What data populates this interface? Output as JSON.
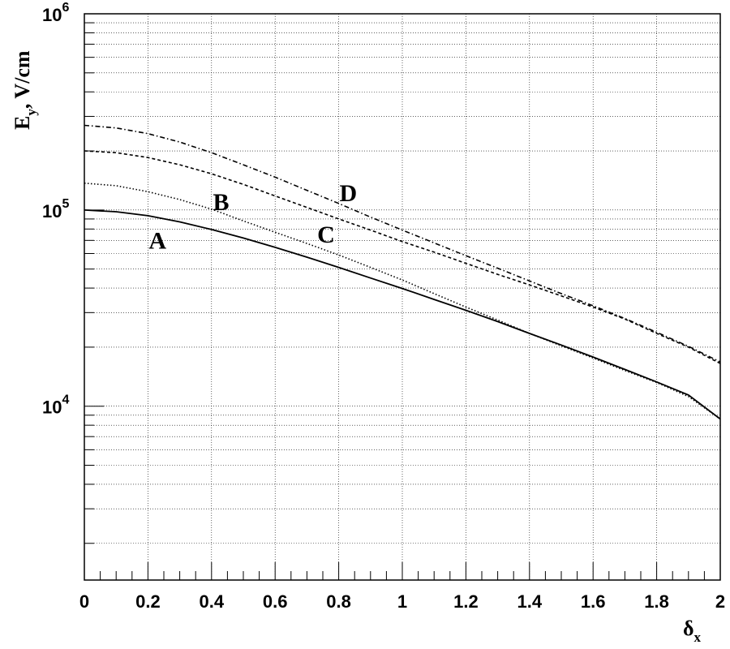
{
  "chart_data": {
    "type": "line",
    "xlabel": {
      "base": "δ",
      "sub": "x"
    },
    "ylabel": {
      "e": "E",
      "sub": "y",
      "rest": ", V/cm"
    },
    "xlim": [
      0,
      2
    ],
    "ylim": [
      1300,
      1000000
    ],
    "yscale": "log",
    "grid": true,
    "x_ticks": [
      {
        "value": 0,
        "label": "0"
      },
      {
        "value": 0.2,
        "label": "0.2"
      },
      {
        "value": 0.4,
        "label": "0.4"
      },
      {
        "value": 0.6,
        "label": "0.6"
      },
      {
        "value": 0.8,
        "label": "0.8"
      },
      {
        "value": 1,
        "label": "1"
      },
      {
        "value": 1.2,
        "label": "1.2"
      },
      {
        "value": 1.4,
        "label": "1.4"
      },
      {
        "value": 1.6,
        "label": "1.6"
      },
      {
        "value": 1.8,
        "label": "1.8"
      },
      {
        "value": 2,
        "label": "2"
      }
    ],
    "y_ticks": [
      {
        "value": 10000,
        "base": "10",
        "exp": "4"
      },
      {
        "value": 100000,
        "base": "10",
        "exp": "5"
      },
      {
        "value": 1000000,
        "base": "10",
        "exp": "6"
      }
    ],
    "series": [
      {
        "name": "A",
        "dash": "solid",
        "x": [
          0,
          0.1,
          0.2,
          0.3,
          0.4,
          0.5,
          0.6,
          0.7,
          0.8,
          0.9,
          1.0,
          1.1,
          1.2,
          1.3,
          1.4,
          1.5,
          1.6,
          1.7,
          1.8,
          1.9,
          2.0
        ],
        "y": [
          100000,
          98000,
          93500,
          87000,
          79500,
          72000,
          64500,
          57500,
          51000,
          45000,
          39800,
          35000,
          30800,
          27000,
          23500,
          20500,
          17800,
          15400,
          13300,
          11400,
          8600
        ]
      },
      {
        "name": "B",
        "dash": "dotted",
        "x": [
          0,
          0.1,
          0.2,
          0.3,
          0.4,
          0.5,
          0.6,
          0.7,
          0.8,
          0.9,
          1.0,
          1.1,
          1.2,
          1.3,
          1.4,
          1.5,
          1.6,
          1.7,
          1.8,
          1.9,
          2.0
        ],
        "y": [
          137000,
          133000,
          124000,
          113000,
          101000,
          88000,
          77000,
          67500,
          59000,
          51000,
          44000,
          37500,
          32000,
          27500,
          23500,
          20300,
          17600,
          15200,
          13200,
          11200,
          8600
        ]
      },
      {
        "name": "C",
        "dash": "dashed",
        "x": [
          0,
          0.1,
          0.2,
          0.3,
          0.4,
          0.5,
          0.6,
          0.7,
          0.8,
          0.9,
          1.0,
          1.1,
          1.2,
          1.3,
          1.4,
          1.5,
          1.6,
          1.7,
          1.8,
          1.9,
          2.0
        ],
        "y": [
          200000,
          196000,
          185000,
          170000,
          153000,
          135000,
          118000,
          103000,
          90000,
          79000,
          69000,
          61000,
          53500,
          47000,
          41500,
          36500,
          32000,
          27800,
          23500,
          20000,
          16500
        ]
      },
      {
        "name": "D",
        "dash": "dashdot",
        "x": [
          0,
          0.1,
          0.2,
          0.3,
          0.4,
          0.5,
          0.6,
          0.7,
          0.8,
          0.9,
          1.0,
          1.1,
          1.2,
          1.3,
          1.4,
          1.5,
          1.6,
          1.7,
          1.8,
          1.9,
          2.0
        ],
        "y": [
          270000,
          262000,
          245000,
          222000,
          196000,
          170000,
          147000,
          126000,
          108000,
          92000,
          79000,
          68000,
          58500,
          50500,
          43500,
          37500,
          32500,
          28000,
          23800,
          20200,
          16800
        ]
      }
    ],
    "annotations": [
      {
        "text": "A",
        "x": 0.23,
        "y": 70000
      },
      {
        "text": "B",
        "x": 0.43,
        "y": 110000
      },
      {
        "text": "C",
        "x": 0.76,
        "y": 75000
      },
      {
        "text": "D",
        "x": 0.83,
        "y": 122000
      }
    ]
  }
}
